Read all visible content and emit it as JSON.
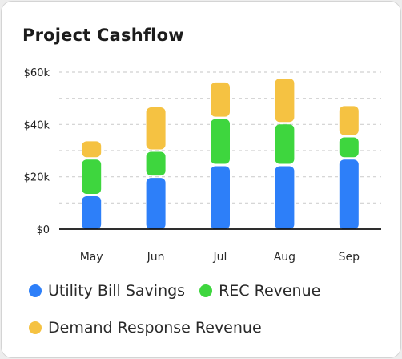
{
  "chart_data": {
    "type": "bar",
    "stacked": true,
    "title": "Project Cashflow",
    "categories": [
      "May",
      "Jun",
      "Jul",
      "Aug",
      "Sep"
    ],
    "series": [
      {
        "name": "Utility Bill Savings",
        "color": "#2d7ff9",
        "values": [
          13000,
          20000,
          24500,
          24500,
          27000
        ]
      },
      {
        "name": "REC Revenue",
        "color": "#3ed63e",
        "values": [
          14000,
          10000,
          18000,
          16000,
          8500
        ]
      },
      {
        "name": "Demand Response Revenue",
        "color": "#f5c242",
        "values": [
          7000,
          17000,
          14000,
          17500,
          12000
        ]
      }
    ],
    "y_ticks": [
      "$0",
      "$20k",
      "$40k",
      "$60k"
    ],
    "ylim": [
      0,
      60000
    ],
    "grid": true,
    "legend_position": "bottom"
  }
}
